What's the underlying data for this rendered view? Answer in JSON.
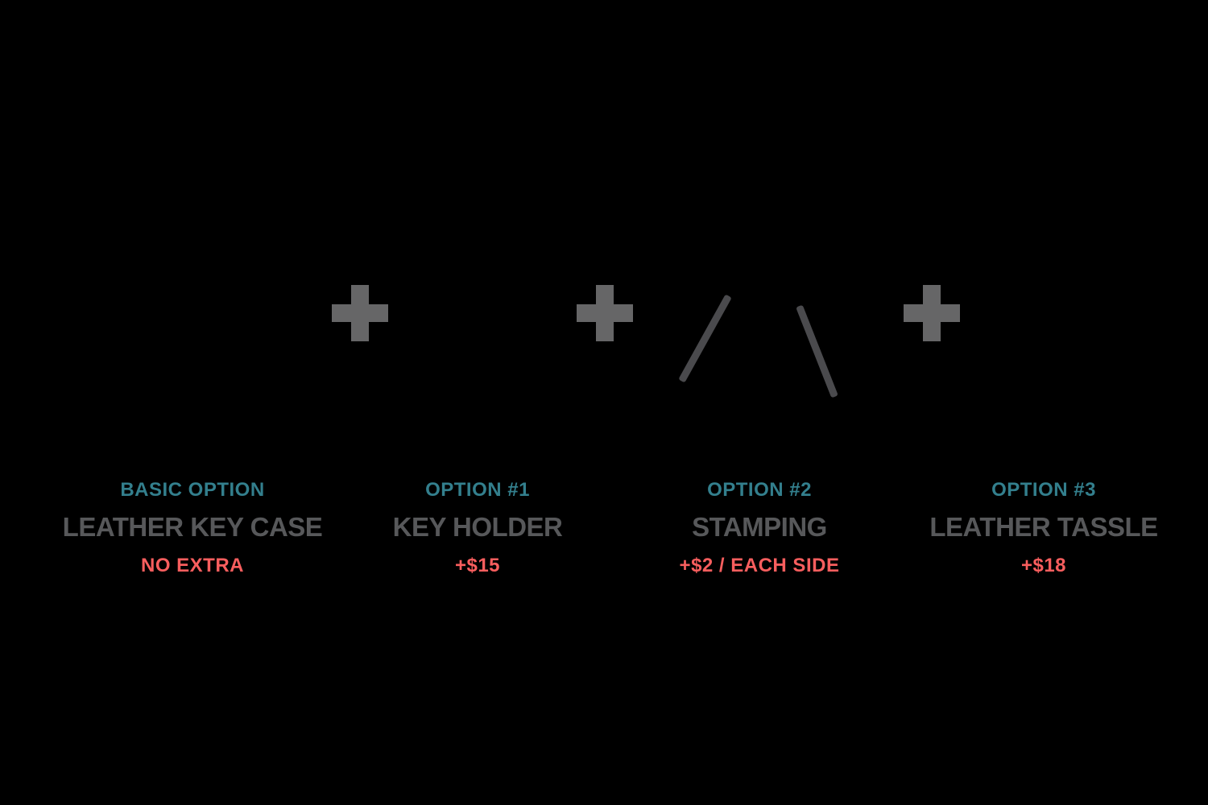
{
  "infographic": {
    "background_color": "#000000",
    "accent_colors": {
      "option_label_teal": "#337f8d",
      "title_gray": "#57585a",
      "price_coral": "#f95e5e",
      "plus_icon_gray": "#666667",
      "stamping_tool_gray": "#4a4a4d"
    },
    "options": [
      {
        "label": "BASIC OPTION",
        "title": "LEATHER KEY CASE",
        "price": "NO EXTRA"
      },
      {
        "label": "OPTION #1",
        "title": "KEY HOLDER",
        "price": "+$15"
      },
      {
        "label": "OPTION #2",
        "title": "STAMPING",
        "price": "+$2 / EACH SIDE"
      },
      {
        "label": "OPTION #3",
        "title": "LEATHER TASSLE",
        "price": "+$18"
      }
    ],
    "icons": {
      "plus_count": 3,
      "plus_icon": "plus-icon",
      "stamping_tools": [
        "stamping-tool-left",
        "stamping-tool-right"
      ]
    }
  }
}
